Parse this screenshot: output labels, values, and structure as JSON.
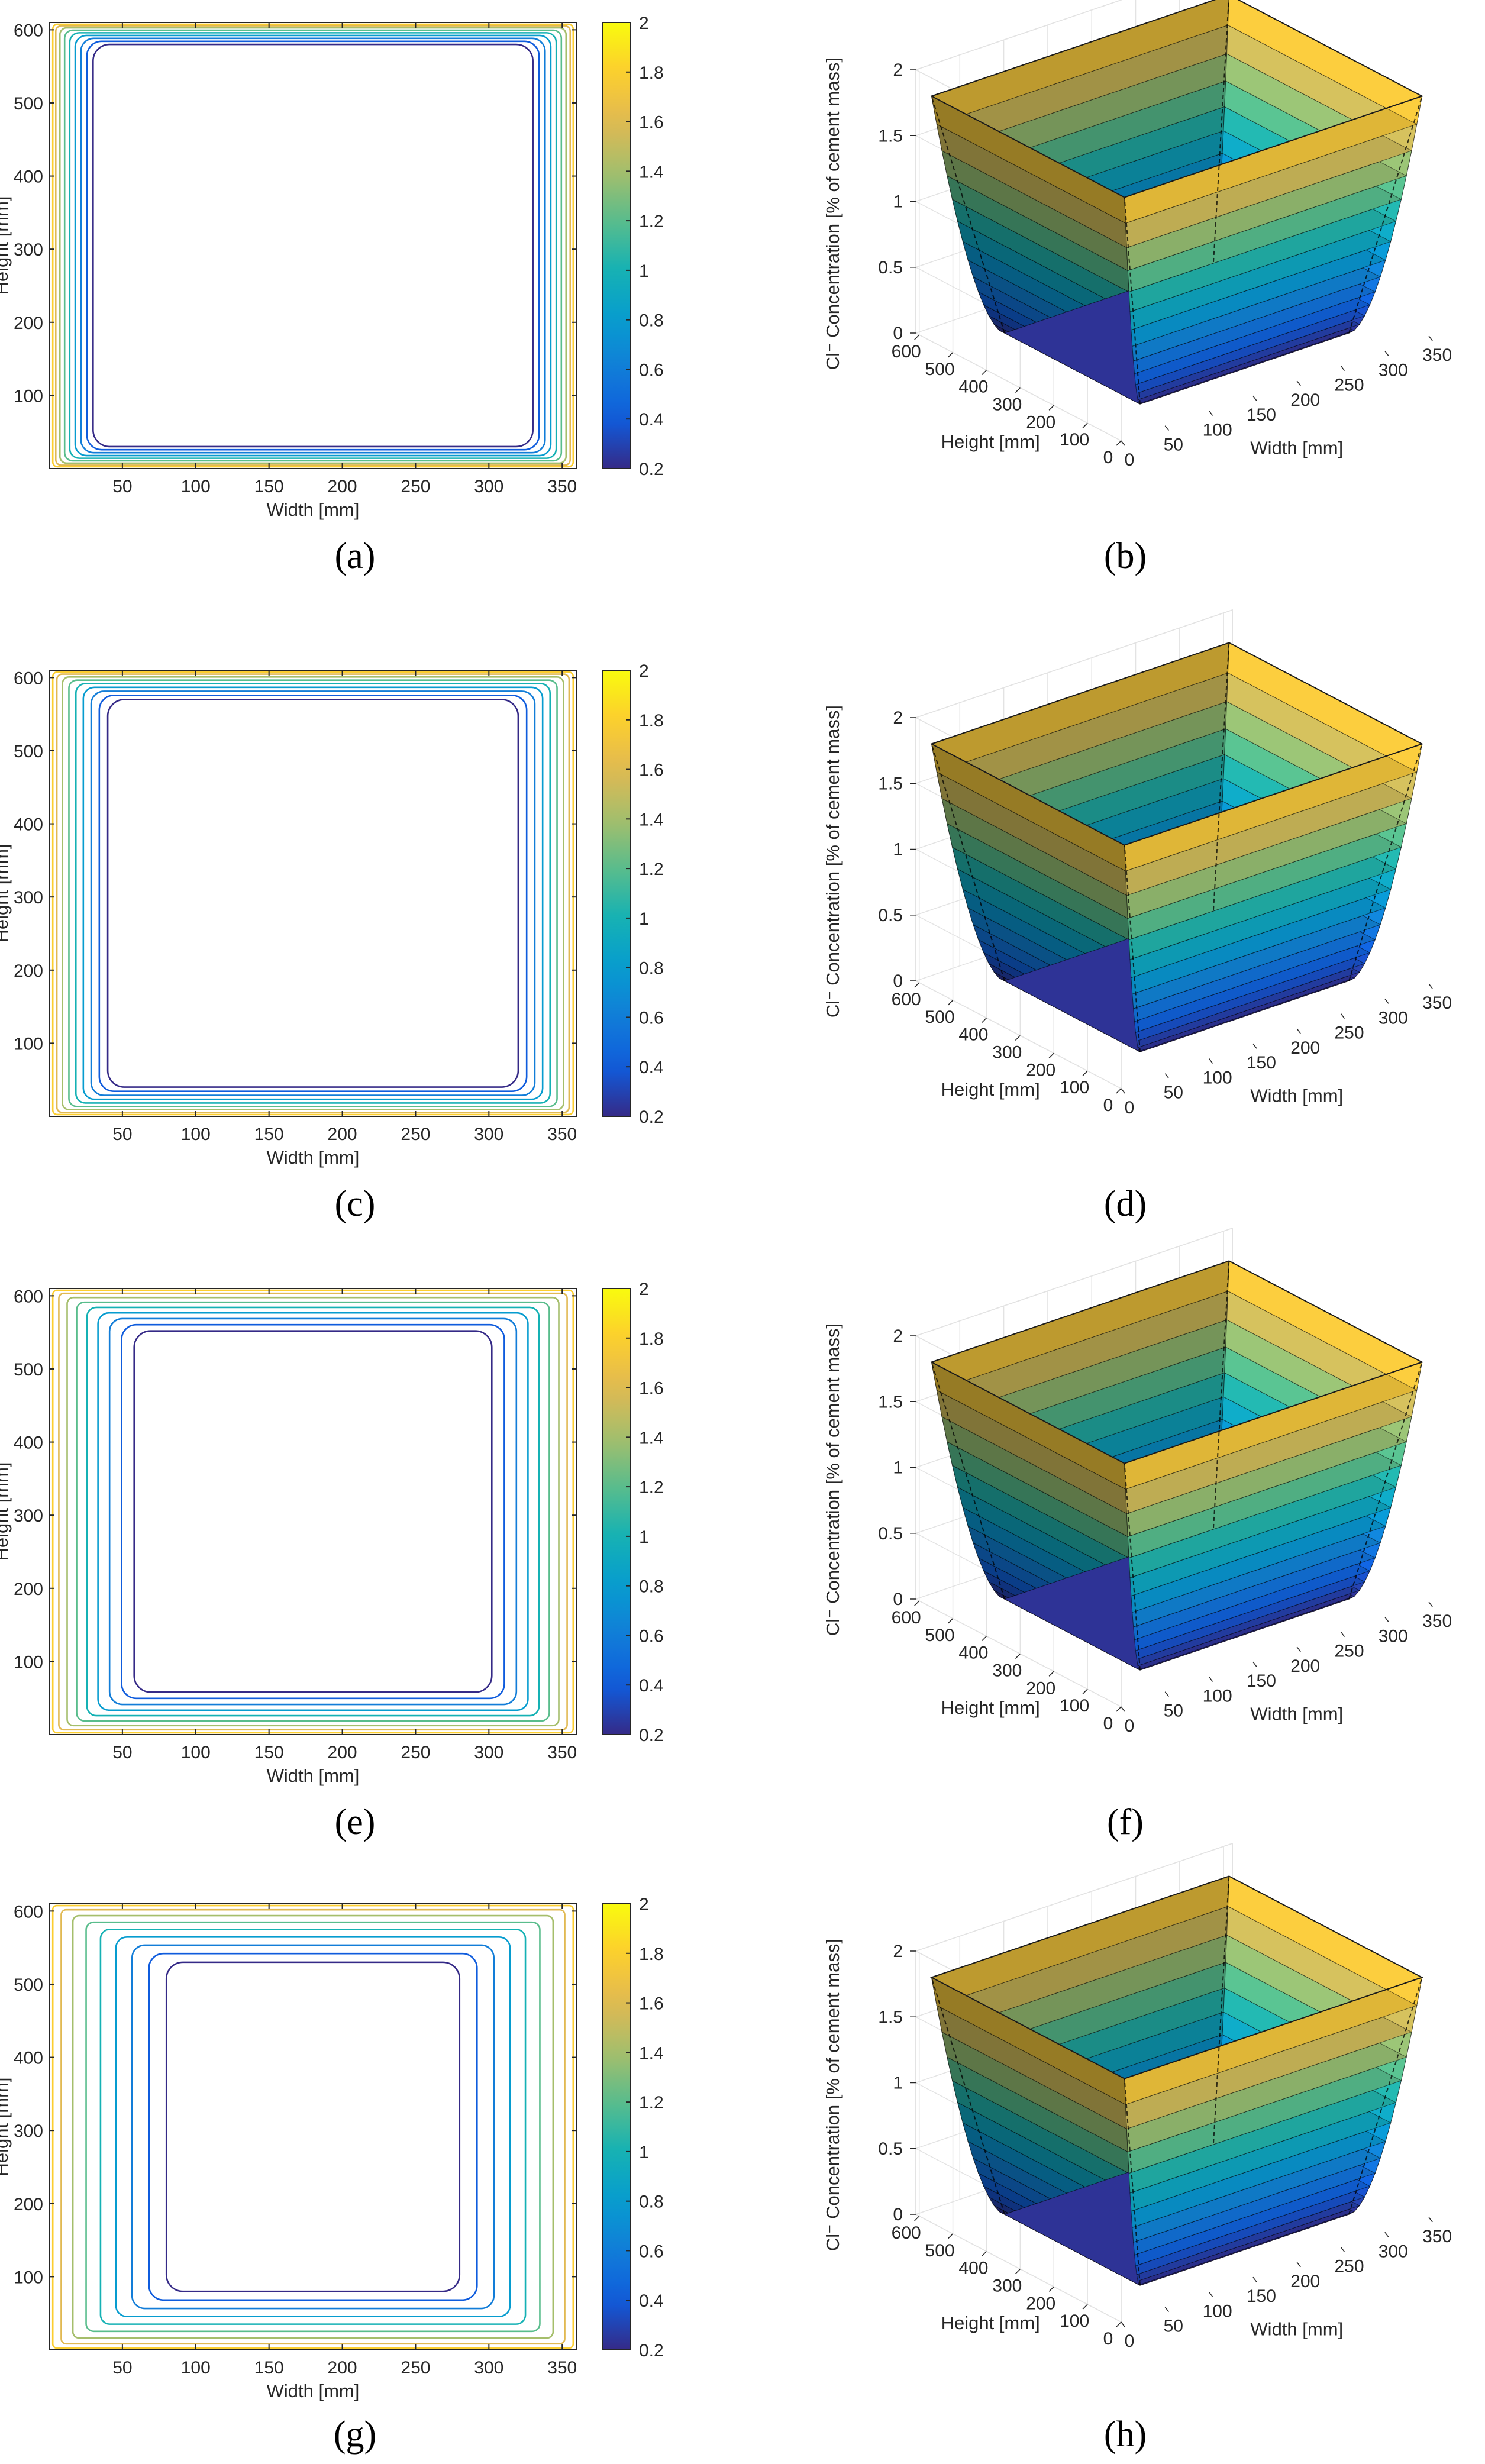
{
  "chart_data": [
    {
      "panel": "a",
      "type": "contour",
      "caption": "(a)",
      "xlabel": "Width [mm]",
      "ylabel": "Height [mm]",
      "xlim": [
        0,
        360
      ],
      "ylim": [
        0,
        610
      ],
      "xticks": [
        50,
        100,
        150,
        200,
        250,
        300,
        350
      ],
      "yticks": [
        100,
        200,
        300,
        400,
        500,
        600
      ],
      "colorbar": {
        "min": 0.2,
        "max": 2,
        "ticks": [
          0.2,
          0.4,
          0.6,
          0.8,
          1,
          1.2,
          1.4,
          1.6,
          1.8,
          2
        ]
      },
      "contour_levels": [
        0.2,
        0.4,
        0.6,
        0.8,
        1.0,
        1.2,
        1.4,
        1.6,
        1.8
      ],
      "innermost_offset_mm": 30
    },
    {
      "panel": "b",
      "type": "surface",
      "caption": "(b)",
      "xlabel": "Width [mm]",
      "ylabel": "Height [mm]",
      "zlabel": "Cl⁻ Concentration [% of cement mass]",
      "xlim": [
        0,
        360
      ],
      "ylim": [
        0,
        610
      ],
      "zlim": [
        0,
        2
      ],
      "xticks": [
        0,
        50,
        100,
        150,
        200,
        250,
        300,
        350
      ],
      "yticks": [
        0,
        100,
        200,
        300,
        400,
        500,
        600
      ],
      "zticks": [
        0,
        0.5,
        1,
        1.5,
        2
      ],
      "wall_concentration": 1.8
    },
    {
      "panel": "c",
      "type": "contour",
      "caption": "(c)",
      "xlabel": "Width [mm]",
      "ylabel": "Height [mm]",
      "xlim": [
        0,
        360
      ],
      "ylim": [
        0,
        610
      ],
      "xticks": [
        50,
        100,
        150,
        200,
        250,
        300,
        350
      ],
      "yticks": [
        100,
        200,
        300,
        400,
        500,
        600
      ],
      "colorbar": {
        "min": 0.2,
        "max": 2,
        "ticks": [
          0.2,
          0.4,
          0.6,
          0.8,
          1,
          1.2,
          1.4,
          1.6,
          1.8,
          2
        ]
      },
      "contour_levels": [
        0.2,
        0.4,
        0.6,
        0.8,
        1.0,
        1.2,
        1.4,
        1.6,
        1.8
      ],
      "innermost_offset_mm": 40
    },
    {
      "panel": "d",
      "type": "surface",
      "caption": "(d)",
      "xlabel": "Width [mm]",
      "ylabel": "Height [mm]",
      "zlabel": "Cl⁻ Concentration [% of cement mass]",
      "xlim": [
        0,
        360
      ],
      "ylim": [
        0,
        610
      ],
      "zlim": [
        0,
        2
      ],
      "xticks": [
        0,
        50,
        100,
        150,
        200,
        250,
        300,
        350
      ],
      "yticks": [
        0,
        100,
        200,
        300,
        400,
        500,
        600
      ],
      "zticks": [
        0,
        0.5,
        1,
        1.5,
        2
      ],
      "wall_concentration": 1.8
    },
    {
      "panel": "e",
      "type": "contour",
      "caption": "(e)",
      "xlabel": "Width [mm]",
      "ylabel": "Height [mm]",
      "xlim": [
        0,
        360
      ],
      "ylim": [
        0,
        610
      ],
      "xticks": [
        50,
        100,
        150,
        200,
        250,
        300,
        350
      ],
      "yticks": [
        100,
        200,
        300,
        400,
        500,
        600
      ],
      "colorbar": {
        "min": 0.2,
        "max": 2,
        "ticks": [
          0.2,
          0.4,
          0.6,
          0.8,
          1,
          1.2,
          1.4,
          1.6,
          1.8,
          2
        ]
      },
      "contour_levels": [
        0.2,
        0.4,
        0.6,
        0.8,
        1.0,
        1.2,
        1.4,
        1.6,
        1.8
      ],
      "innermost_offset_mm": 58
    },
    {
      "panel": "f",
      "type": "surface",
      "caption": "(f)",
      "xlabel": "Width [mm]",
      "ylabel": "Height [mm]",
      "zlabel": "Cl⁻ Concentration [% of cement mass]",
      "xlim": [
        0,
        360
      ],
      "ylim": [
        0,
        610
      ],
      "zlim": [
        0,
        2
      ],
      "xticks": [
        0,
        50,
        100,
        150,
        200,
        250,
        300,
        350
      ],
      "yticks": [
        0,
        100,
        200,
        300,
        400,
        500,
        600
      ],
      "zticks": [
        0,
        0.5,
        1,
        1.5,
        2
      ],
      "wall_concentration": 1.8
    },
    {
      "panel": "g",
      "type": "contour",
      "caption": "(g)",
      "xlabel": "Width [mm]",
      "ylabel": "Height [mm]",
      "xlim": [
        0,
        360
      ],
      "ylim": [
        0,
        610
      ],
      "xticks": [
        50,
        100,
        150,
        200,
        250,
        300,
        350
      ],
      "yticks": [
        100,
        200,
        300,
        400,
        500,
        600
      ],
      "colorbar": {
        "min": 0.2,
        "max": 2,
        "ticks": [
          0.2,
          0.4,
          0.6,
          0.8,
          1,
          1.2,
          1.4,
          1.6,
          1.8,
          2
        ]
      },
      "contour_levels": [
        0.2,
        0.4,
        0.6,
        0.8,
        1.0,
        1.2,
        1.4,
        1.6,
        1.8
      ],
      "innermost_offset_mm": 80
    },
    {
      "panel": "h",
      "type": "surface",
      "caption": "(h)",
      "xlabel": "Width [mm]",
      "ylabel": "Height [mm]",
      "zlabel": "Cl⁻ Concentration [% of cement mass]",
      "xlim": [
        0,
        360
      ],
      "ylim": [
        0,
        610
      ],
      "zlim": [
        0,
        2
      ],
      "xticks": [
        0,
        50,
        100,
        150,
        200,
        250,
        300,
        350
      ],
      "yticks": [
        0,
        100,
        200,
        300,
        400,
        500,
        600
      ],
      "zticks": [
        0,
        0.5,
        1,
        1.5,
        2
      ],
      "wall_concentration": 1.8
    }
  ]
}
